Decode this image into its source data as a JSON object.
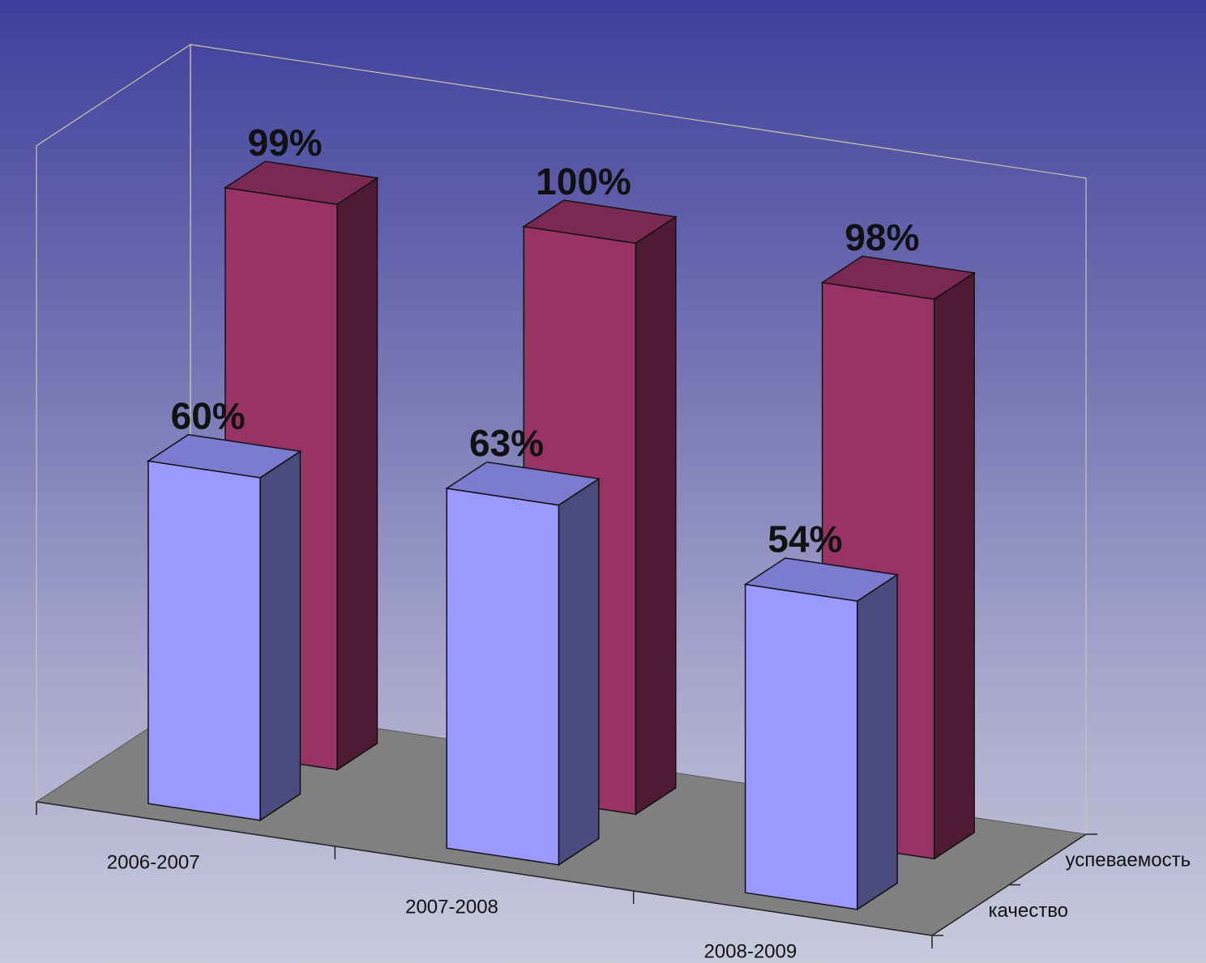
{
  "chart_data": {
    "type": "bar",
    "title": "",
    "xlabel": "",
    "ylabel": "",
    "ylim": [
      0,
      100
    ],
    "grid": false,
    "categories": [
      "2006-2007",
      "2007-2008",
      "2008-2009"
    ],
    "series": [
      {
        "name": "качество",
        "values": [
          60,
          63,
          54
        ],
        "value_labels": [
          "60%",
          "63%",
          "54%"
        ],
        "color": "#9999ff",
        "side_color": "#4b4b7e",
        "top_color": "#7b7bd0"
      },
      {
        "name": "успеваемость",
        "values": [
          99,
          100,
          98
        ],
        "value_labels": [
          "99%",
          "100%",
          "98%"
        ],
        "color": "#993366",
        "side_color": "#4f1a33",
        "top_color": "#7a2a52"
      }
    ],
    "floor_color": "#808080"
  }
}
